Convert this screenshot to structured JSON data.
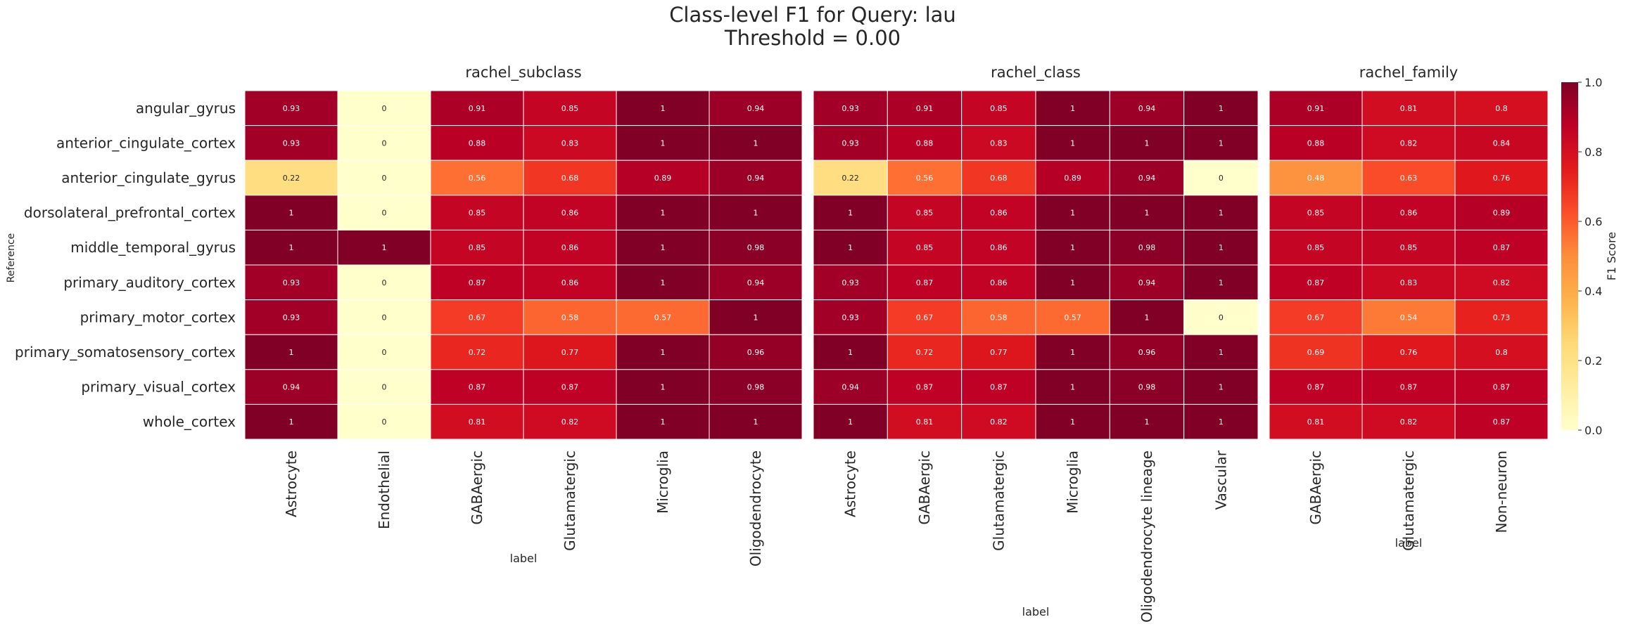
{
  "title_line1": "Class-level F1 for Query: lau",
  "title_line2": "Threshold = 0.00",
  "ylabel": "Reference",
  "colorbar": {
    "label": "F1 Score",
    "ticks": [
      "0.0",
      "0.2",
      "0.4",
      "0.6",
      "0.8",
      "1.0"
    ],
    "range": [
      0,
      1
    ],
    "colormap": "YlOrRd"
  },
  "chart_data": {
    "type": "heatmap",
    "rows": [
      "angular_gyrus",
      "anterior_cingulate_cortex",
      "anterior_cingulate_gyrus",
      "dorsolateral_prefrontal_cortex",
      "middle_temporal_gyrus",
      "primary_auditory_cortex",
      "primary_motor_cortex",
      "primary_somatosensory_cortex",
      "primary_visual_cortex",
      "whole_cortex"
    ],
    "panels": [
      {
        "title": "rachel_subclass",
        "xlabel": "label",
        "columns": [
          "Astrocyte",
          "Endothelial",
          "GABAergic",
          "Glutamatergic",
          "Microglia",
          "Oligodendrocyte"
        ],
        "values": [
          [
            0.93,
            0,
            0.91,
            0.85,
            1,
            0.94
          ],
          [
            0.93,
            0,
            0.88,
            0.83,
            1,
            1
          ],
          [
            0.22,
            0,
            0.56,
            0.68,
            0.89,
            0.94
          ],
          [
            1,
            0,
            0.85,
            0.86,
            1,
            1
          ],
          [
            1,
            1,
            0.85,
            0.86,
            1,
            0.98
          ],
          [
            0.93,
            0,
            0.87,
            0.86,
            1,
            0.94
          ],
          [
            0.93,
            0,
            0.67,
            0.58,
            0.57,
            1
          ],
          [
            1,
            0,
            0.72,
            0.77,
            1,
            0.96
          ],
          [
            0.94,
            0,
            0.87,
            0.87,
            1,
            0.98
          ],
          [
            1,
            0,
            0.81,
            0.82,
            1,
            1
          ]
        ]
      },
      {
        "title": "rachel_class",
        "xlabel": "label",
        "columns": [
          "Astrocyte",
          "GABAergic",
          "Glutamatergic",
          "Microglia",
          "Oligodendrocyte lineage",
          "Vascular"
        ],
        "values": [
          [
            0.93,
            0.91,
            0.85,
            1,
            0.94,
            1
          ],
          [
            0.93,
            0.88,
            0.83,
            1,
            1,
            1
          ],
          [
            0.22,
            0.56,
            0.68,
            0.89,
            0.94,
            0
          ],
          [
            1,
            0.85,
            0.86,
            1,
            1,
            1
          ],
          [
            1,
            0.85,
            0.86,
            1,
            0.98,
            1
          ],
          [
            0.93,
            0.87,
            0.86,
            1,
            0.94,
            1
          ],
          [
            0.93,
            0.67,
            0.58,
            0.57,
            1,
            0
          ],
          [
            1,
            0.72,
            0.77,
            1,
            0.96,
            1
          ],
          [
            0.94,
            0.87,
            0.87,
            1,
            0.98,
            1
          ],
          [
            1,
            0.81,
            0.82,
            1,
            1,
            1
          ]
        ]
      },
      {
        "title": "rachel_family",
        "xlabel": "label",
        "columns": [
          "GABAergic",
          "Glutamatergic",
          "Non-neuron"
        ],
        "values": [
          [
            0.91,
            0.81,
            0.8
          ],
          [
            0.88,
            0.82,
            0.84
          ],
          [
            0.48,
            0.63,
            0.76
          ],
          [
            0.85,
            0.86,
            0.89
          ],
          [
            0.85,
            0.85,
            0.87
          ],
          [
            0.87,
            0.83,
            0.82
          ],
          [
            0.67,
            0.54,
            0.73
          ],
          [
            0.69,
            0.76,
            0.8
          ],
          [
            0.87,
            0.87,
            0.87
          ],
          [
            0.81,
            0.82,
            0.87
          ]
        ]
      }
    ]
  }
}
